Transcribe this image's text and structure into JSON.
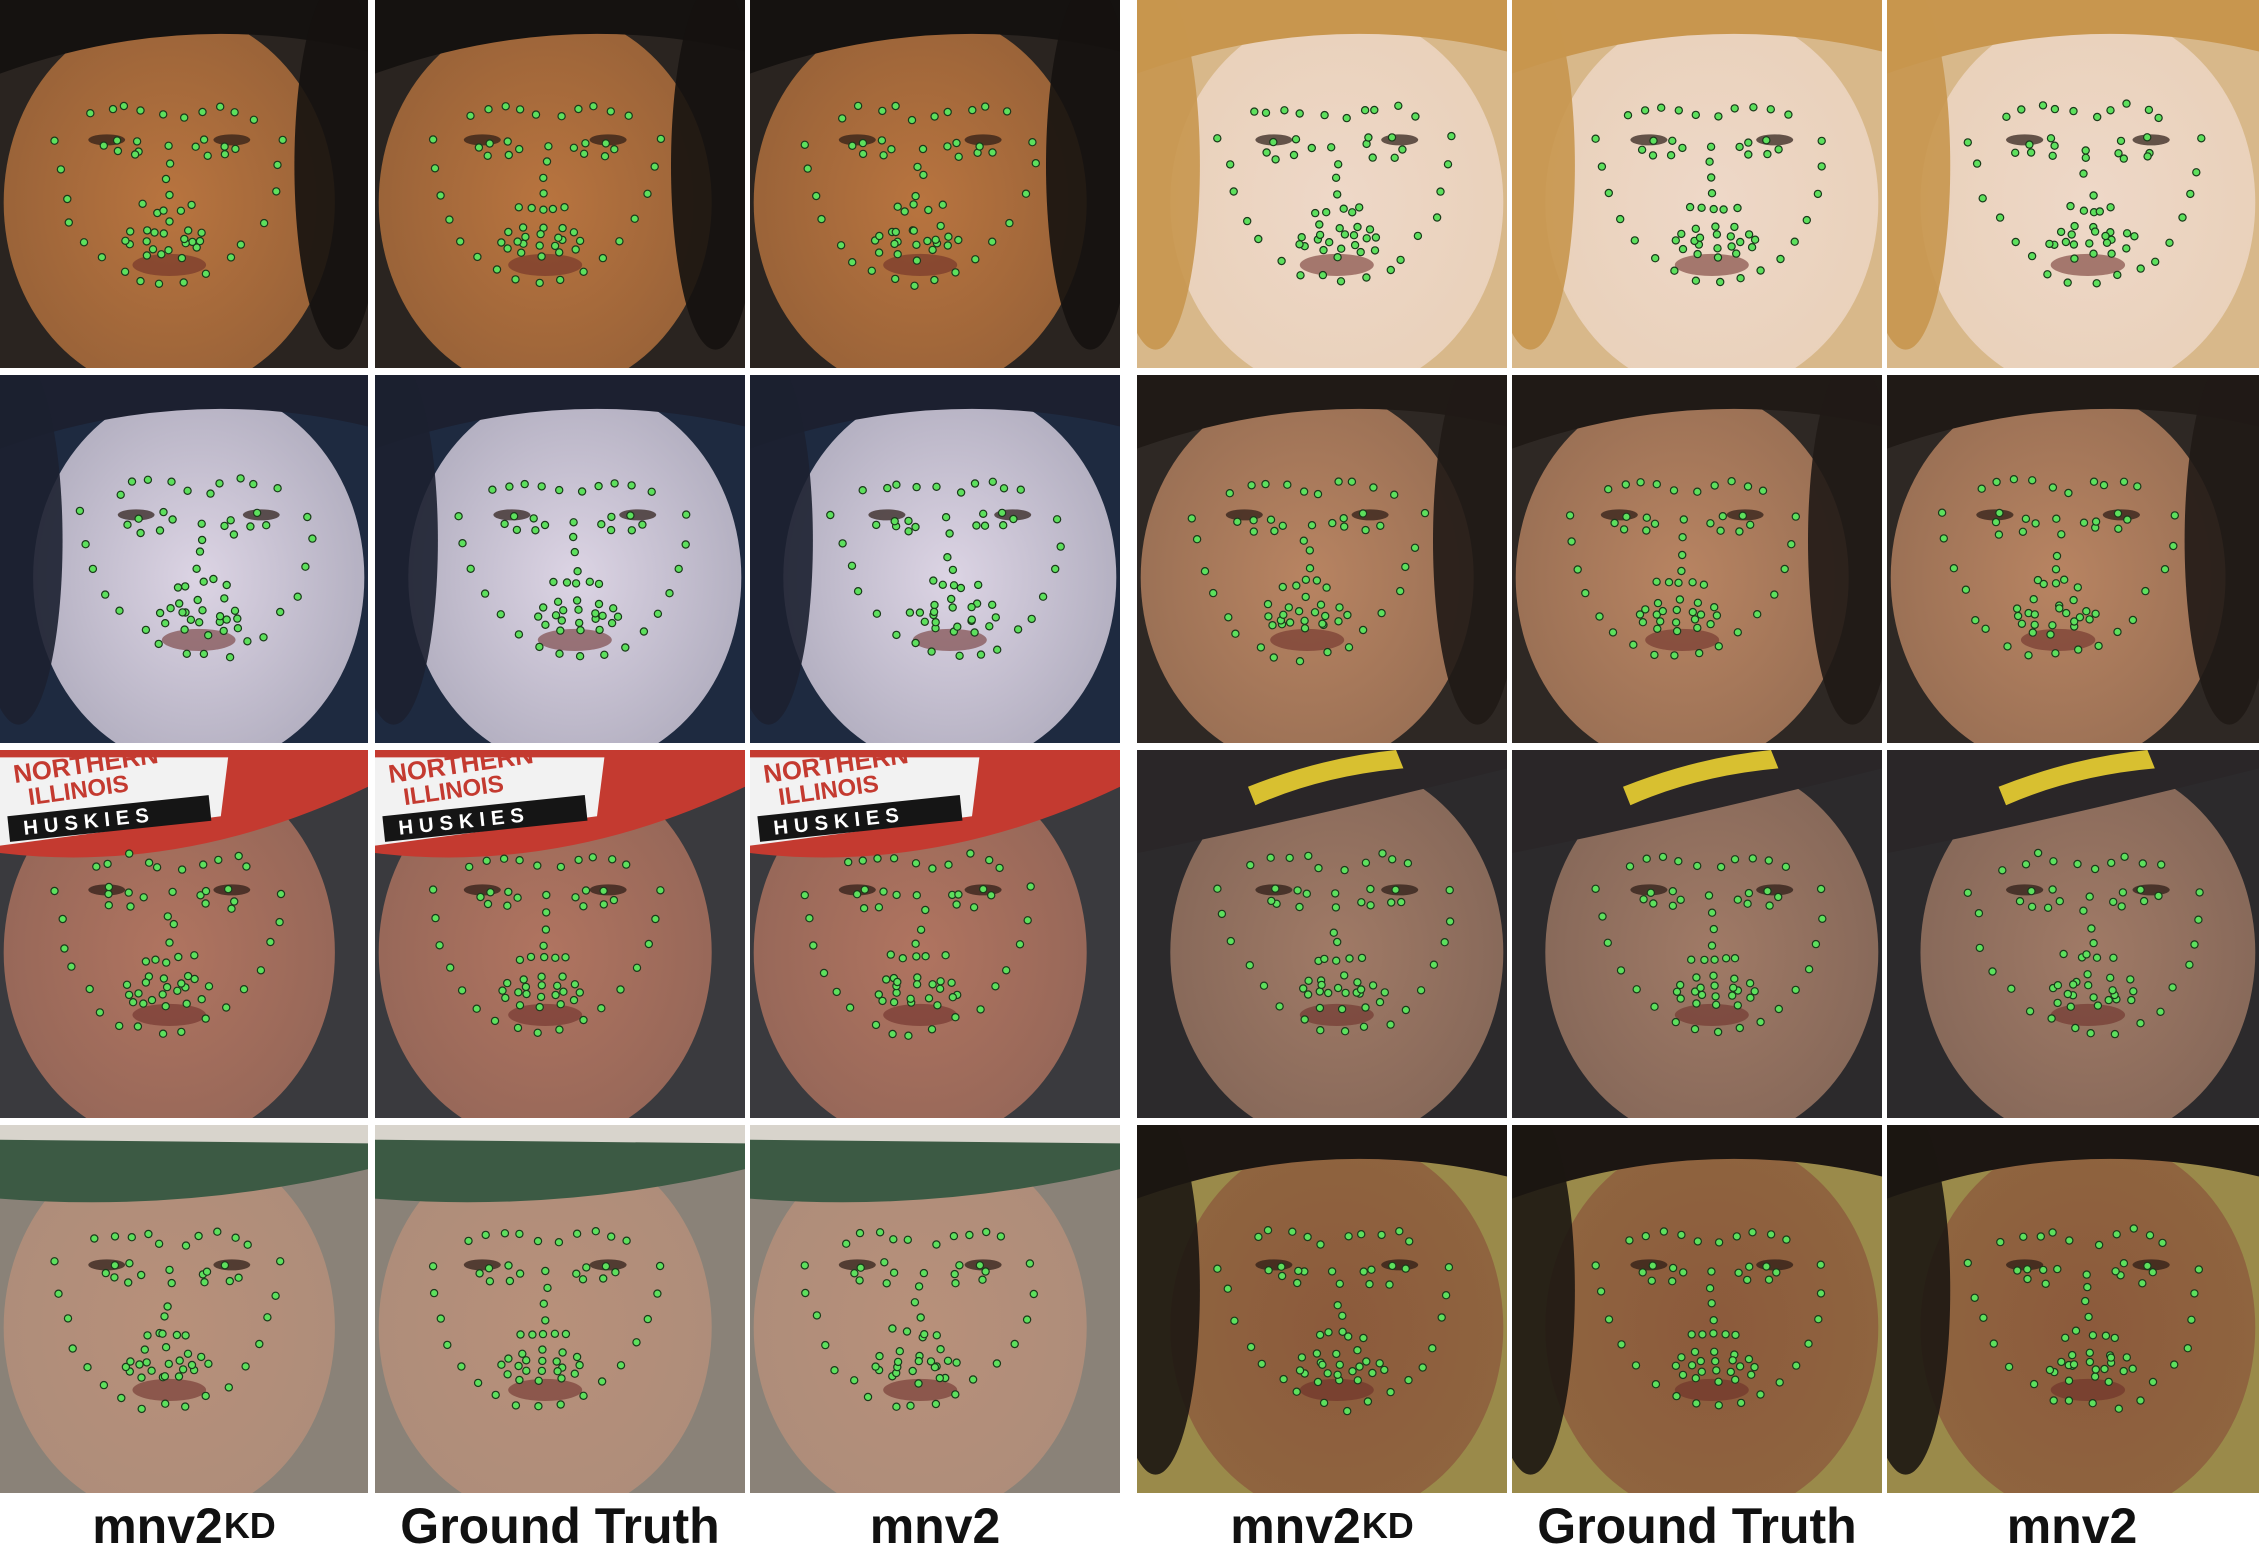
{
  "column_labels": [
    {
      "main": "mnv2",
      "sub": "KD"
    },
    {
      "main": "Ground Truth",
      "sub": ""
    },
    {
      "main": "mnv2",
      "sub": ""
    },
    {
      "main": "mnv2",
      "sub": "KD"
    },
    {
      "main": "Ground Truth",
      "sub": ""
    },
    {
      "main": "mnv2",
      "sub": ""
    }
  ],
  "cap_text": {
    "line1": "NORTHERN",
    "line2": "ILLINOIS",
    "line3": "HUSKIES"
  },
  "colors": {
    "landmark_fill": "#5de05d",
    "landmark_stroke": "#1a3a1a",
    "divider": "#ffffff"
  },
  "faces": [
    {
      "name": "face-rihanna",
      "bg": "#2a2420",
      "skin": "#b8743f",
      "hair": "#151210",
      "head": "left"
    },
    {
      "name": "face-blonde",
      "bg": "#d8b88a",
      "skin": "#eed8c8",
      "hair": "#c8964e",
      "head": "right"
    },
    {
      "name": "face-pale-profile",
      "bg": "#1e2a40",
      "skin": "#dcd4e4",
      "hair": "#1c2030",
      "head": "right"
    },
    {
      "name": "face-brunette",
      "bg": "#2e2824",
      "skin": "#b88462",
      "hair": "#201a16",
      "head": "left"
    },
    {
      "name": "face-huskies-cap",
      "bg": "#3a3a3e",
      "skin": "#b07460",
      "hair": "#c43a30",
      "head": "left"
    },
    {
      "name": "face-bearded-cap-dark",
      "bg": "#2c2a2c",
      "skin": "#a07a66",
      "hair": "#2a2628",
      "head": "right"
    },
    {
      "name": "face-bearded-green-cap",
      "bg": "#8a8278",
      "skin": "#b8907a",
      "hair": "#3c5a44",
      "head": "left"
    },
    {
      "name": "face-smiling-woman",
      "bg": "#9a8a4a",
      "skin": "#8c5a3c",
      "hair": "#1c1612",
      "head": "right"
    }
  ]
}
